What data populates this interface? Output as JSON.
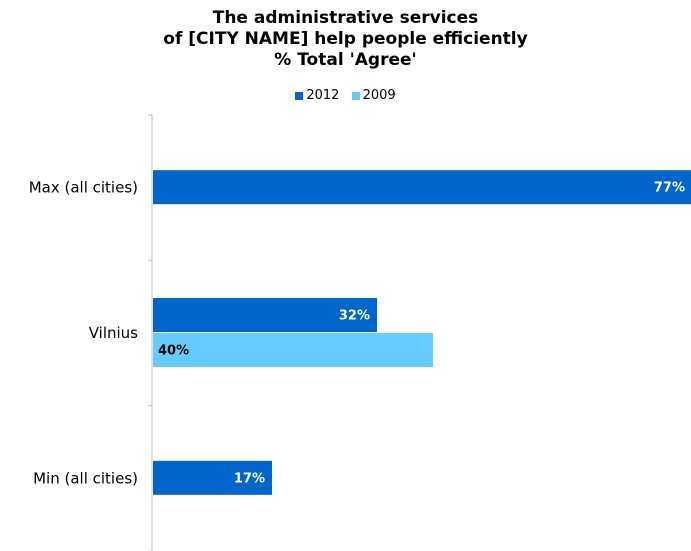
{
  "chart_data": {
    "type": "bar",
    "orientation": "horizontal",
    "title": [
      "The administrative services",
      "of [CITY NAME] help people efficiently",
      "% Total 'Agree'"
    ],
    "categories": [
      "Max (all cities)",
      "Vilnius",
      "Min (all cities)"
    ],
    "series": [
      {
        "name": "2012",
        "color": "#0066cc",
        "label_color": "#ffffff",
        "values": [
          77,
          32,
          17
        ]
      },
      {
        "name": "2009",
        "color": "#66ccff",
        "label_color": "#000000",
        "values": [
          null,
          40,
          null
        ]
      }
    ],
    "value_suffix": "%",
    "xlim": [
      0,
      77
    ],
    "legend_position": "top",
    "grid": false
  }
}
